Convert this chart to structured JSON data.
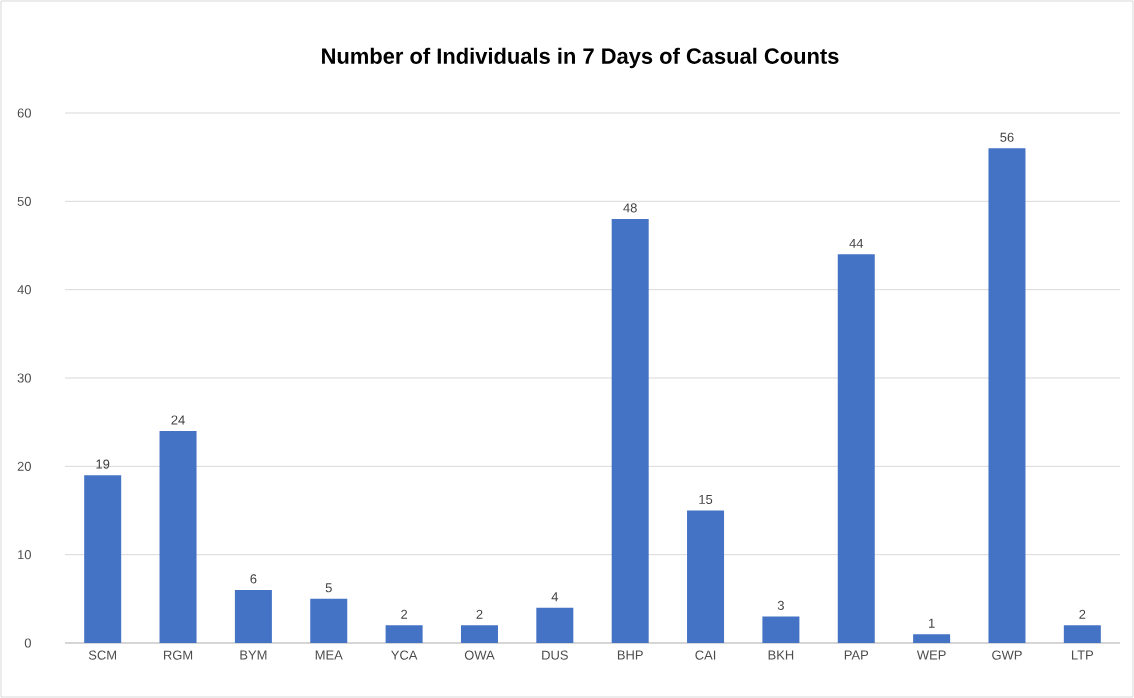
{
  "chart_data": {
    "type": "bar",
    "title": "Number of Individuals in 7 Days of Casual Counts",
    "categories": [
      "SCM",
      "RGM",
      "BYM",
      "MEA",
      "YCA",
      "OWA",
      "DUS",
      "BHP",
      "CAI",
      "BKH",
      "PAP",
      "WEP",
      "GWP",
      "LTP"
    ],
    "values": [
      19,
      24,
      6,
      5,
      2,
      2,
      4,
      48,
      15,
      3,
      44,
      1,
      56,
      2
    ],
    "color": "#4472c4",
    "ylim": [
      0,
      60
    ],
    "yticks": [
      0,
      10,
      20,
      30,
      40,
      50,
      60
    ],
    "grid": "y",
    "data_labels": true
  }
}
